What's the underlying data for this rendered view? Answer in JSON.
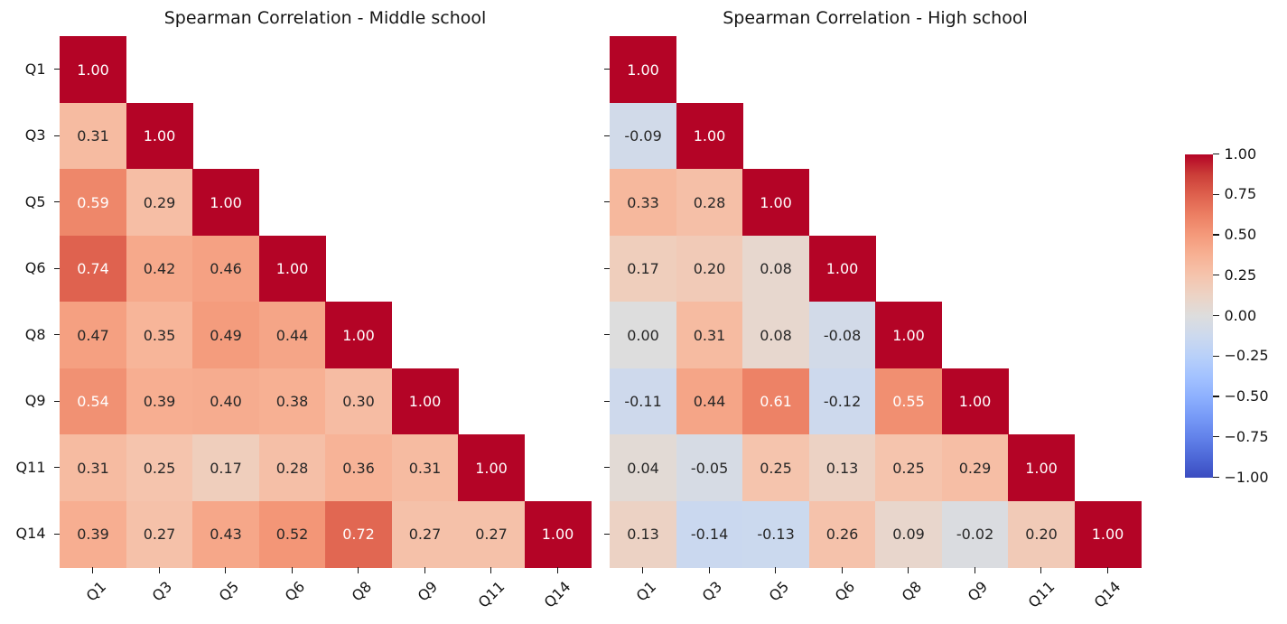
{
  "chart_data": {
    "type": "heatmap",
    "figure_background": "#ffffff",
    "cmap": "coolwarm",
    "vmin": -1,
    "vmax": 1,
    "annotation_decimals": 2,
    "categories": [
      "Q1",
      "Q3",
      "Q5",
      "Q6",
      "Q8",
      "Q9",
      "Q11",
      "Q14"
    ],
    "subplots": [
      {
        "title": "Spearman Correlation - Middle school",
        "shape": "lower_triangle",
        "show_y_tick_labels": true,
        "x_tick_labels": [
          "Q1",
          "Q3",
          "Q5",
          "Q6",
          "Q8",
          "Q9",
          "Q11",
          "Q14"
        ],
        "y_tick_labels": [
          "Q1",
          "Q3",
          "Q5",
          "Q6",
          "Q8",
          "Q9",
          "Q11",
          "Q14"
        ],
        "values": [
          [
            1.0
          ],
          [
            0.31,
            1.0
          ],
          [
            0.59,
            0.29,
            1.0
          ],
          [
            0.74,
            0.42,
            0.46,
            1.0
          ],
          [
            0.47,
            0.35,
            0.49,
            0.44,
            1.0
          ],
          [
            0.54,
            0.39,
            0.4,
            0.38,
            0.3,
            1.0
          ],
          [
            0.31,
            0.25,
            0.17,
            0.28,
            0.36,
            0.31,
            1.0
          ],
          [
            0.39,
            0.27,
            0.43,
            0.52,
            0.72,
            0.27,
            0.27,
            1.0
          ]
        ]
      },
      {
        "title": "Spearman Correlation - High school",
        "shape": "lower_triangle",
        "show_y_tick_labels": false,
        "x_tick_labels": [
          "Q1",
          "Q3",
          "Q5",
          "Q6",
          "Q8",
          "Q9",
          "Q11",
          "Q14"
        ],
        "y_tick_labels": [],
        "values": [
          [
            1.0
          ],
          [
            -0.09,
            1.0
          ],
          [
            0.33,
            0.28,
            1.0
          ],
          [
            0.17,
            0.2,
            0.08,
            1.0
          ],
          [
            0.0,
            0.31,
            0.08,
            -0.08,
            1.0
          ],
          [
            -0.11,
            0.44,
            0.61,
            -0.12,
            0.55,
            1.0
          ],
          [
            0.04,
            -0.05,
            0.25,
            0.13,
            0.25,
            0.29,
            1.0
          ],
          [
            0.13,
            -0.14,
            -0.13,
            0.26,
            0.09,
            -0.02,
            0.2,
            1.0
          ]
        ]
      }
    ],
    "colorbar": {
      "orientation": "vertical",
      "tick_labels": [
        "1.00",
        "0.75",
        "0.50",
        "0.25",
        "0.00",
        "−0.25",
        "−0.50",
        "−0.75",
        "−1.00"
      ],
      "top_color": "#b40426",
      "mid_color": "#dddddd",
      "bottom_color": "#3b4cc0"
    }
  }
}
